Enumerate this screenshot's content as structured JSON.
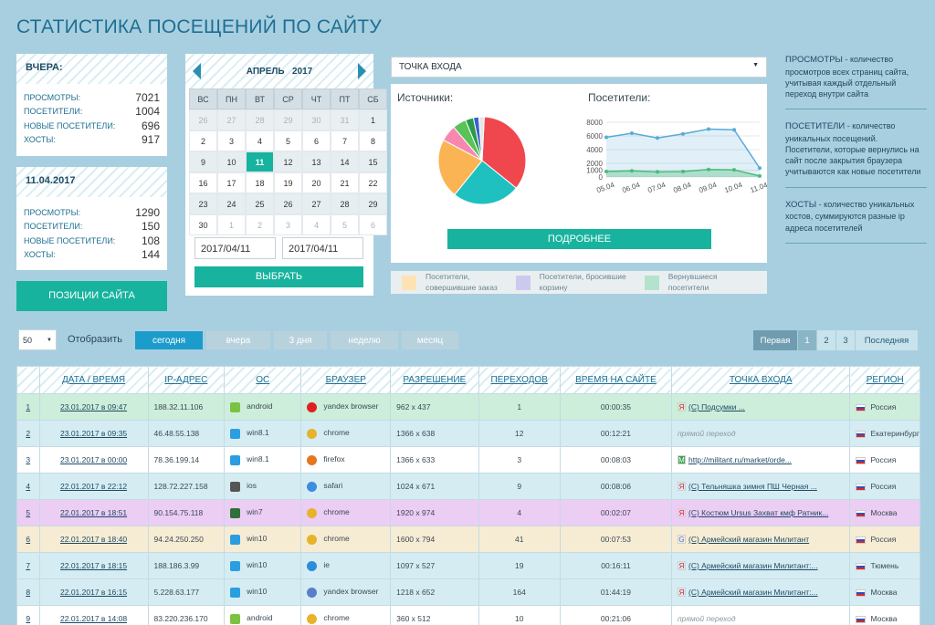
{
  "page_title": "СТАТИСТИКА ПОСЕЩЕНИЙ ПО САЙТУ",
  "yesterday": {
    "title": "ВЧЕРА:",
    "rows": [
      {
        "label": "ПРОСМОТРЫ:",
        "value": "7021"
      },
      {
        "label": "ПОСЕТИТЕЛИ:",
        "value": "1004"
      },
      {
        "label": "НОВЫЕ ПОСЕТИТЕЛИ:",
        "value": "696"
      },
      {
        "label": "ХОСТЫ:",
        "value": "917"
      }
    ]
  },
  "date_block": {
    "title": "11.04.2017",
    "rows": [
      {
        "label": "ПРОСМОТРЫ:",
        "value": "1290"
      },
      {
        "label": "ПОСЕТИТЕЛИ:",
        "value": "150"
      },
      {
        "label": "НОВЫЕ ПОСЕТИТЕЛИ:",
        "value": "108"
      },
      {
        "label": "ХОСТЫ:",
        "value": "144"
      }
    ]
  },
  "positions_button": "ПОЗИЦИИ САЙТА",
  "calendar": {
    "month": "АПРЕЛЬ",
    "year": "2017",
    "weekdays": [
      "ВС",
      "ПН",
      "ВТ",
      "СР",
      "ЧТ",
      "ПТ",
      "СБ"
    ],
    "days": [
      {
        "d": "26",
        "t": "dim"
      },
      {
        "d": "27",
        "t": "dim"
      },
      {
        "d": "28",
        "t": "dim"
      },
      {
        "d": "29",
        "t": "dim"
      },
      {
        "d": "30",
        "t": "dim"
      },
      {
        "d": "31",
        "t": "dim"
      },
      {
        "d": "1",
        "t": "alt"
      },
      {
        "d": "2",
        "t": "wh"
      },
      {
        "d": "3",
        "t": "wh"
      },
      {
        "d": "4",
        "t": "wh"
      },
      {
        "d": "5",
        "t": "wh"
      },
      {
        "d": "6",
        "t": "wh"
      },
      {
        "d": "7",
        "t": "wh"
      },
      {
        "d": "8",
        "t": "wh"
      },
      {
        "d": "9",
        "t": "alt"
      },
      {
        "d": "10",
        "t": "alt"
      },
      {
        "d": "11",
        "t": "sel"
      },
      {
        "d": "12",
        "t": "alt"
      },
      {
        "d": "13",
        "t": "alt"
      },
      {
        "d": "14",
        "t": "alt"
      },
      {
        "d": "15",
        "t": "alt"
      },
      {
        "d": "16",
        "t": "wh"
      },
      {
        "d": "17",
        "t": "wh"
      },
      {
        "d": "18",
        "t": "wh"
      },
      {
        "d": "19",
        "t": "wh"
      },
      {
        "d": "20",
        "t": "wh"
      },
      {
        "d": "21",
        "t": "wh"
      },
      {
        "d": "22",
        "t": "wh"
      },
      {
        "d": "23",
        "t": "alt"
      },
      {
        "d": "24",
        "t": "alt"
      },
      {
        "d": "25",
        "t": "alt"
      },
      {
        "d": "26",
        "t": "alt"
      },
      {
        "d": "27",
        "t": "alt"
      },
      {
        "d": "28",
        "t": "alt"
      },
      {
        "d": "29",
        "t": "alt"
      },
      {
        "d": "30",
        "t": "wh"
      },
      {
        "d": "1",
        "t": "dimw"
      },
      {
        "d": "2",
        "t": "dimw"
      },
      {
        "d": "3",
        "t": "dimw"
      },
      {
        "d": "4",
        "t": "dimw"
      },
      {
        "d": "5",
        "t": "dimw"
      },
      {
        "d": "6",
        "t": "dimw"
      }
    ],
    "date_from": "2017/04/11",
    "date_to": "2017/04/11",
    "choose_button": "ВЫБРАТЬ"
  },
  "entry_select": "ТОЧКА ВХОДА",
  "sources_label": "Источники:",
  "visitors_label": "Посетители:",
  "more_button": "ПОДРОБНЕЕ",
  "legend": [
    {
      "label": "Посетители,\nсовершившие заказ",
      "color": "#fde3b4"
    },
    {
      "label": "Посетители, бросившие\nкорзину",
      "color": "#cdc9ee"
    },
    {
      "label": "Вернувшиеся\nпосетители",
      "color": "#b4e3cd"
    }
  ],
  "chart_data": [
    {
      "type": "pie",
      "title": "Источники:",
      "values": [
        35,
        25,
        22,
        6,
        5,
        3,
        2,
        2
      ],
      "colors": [
        "#f0474f",
        "#1fc0c0",
        "#fbb454",
        "#f887b0",
        "#59c258",
        "#2a9a4a",
        "#3c5fd0",
        "#e7e7e7"
      ]
    },
    {
      "type": "line",
      "title": "Посетители:",
      "x": [
        "05.04",
        "06.04",
        "07.04",
        "08.04",
        "09.04",
        "10.04",
        "11.04"
      ],
      "ylim": [
        0,
        8000
      ],
      "yticks": [
        "8000",
        "6000",
        "4000",
        "2000",
        "1000",
        "0"
      ],
      "ytick_values": [
        8000,
        6000,
        4000,
        2000,
        1000,
        0
      ],
      "series": [
        {
          "values": [
            5800,
            6400,
            5700,
            6300,
            7000,
            6900,
            1300
          ],
          "color": "#5aaad6"
        },
        {
          "values": [
            800,
            900,
            750,
            800,
            1100,
            1050,
            150
          ],
          "color": "#4cbc78"
        }
      ]
    }
  ],
  "descriptions": [
    {
      "term": "ПРОСМОТРЫ",
      "text": " - количество просмотров всех страниц сайта, учитывая каждый отдельный переход внутри сайта"
    },
    {
      "term": "ПОСЕТИТЕЛИ",
      "text": " - количество уникальных посещений. Посетители, которые вернулись на сайт после закрытия браузера учитываются как новые посетители"
    },
    {
      "term": "ХОСТЫ",
      "text": " - количество уникальных хостов, суммируются разные ip адреса посетителей"
    }
  ],
  "per_page": "50",
  "show_label": "Отобразить",
  "filters": [
    "сегодня",
    "вчера",
    "3 дня",
    "неделю",
    "месяц"
  ],
  "pager": [
    "Первая",
    "1",
    "2",
    "3",
    "Последняя"
  ],
  "table": {
    "headers": [
      "",
      "ДАТА / ВРЕМЯ",
      "IP-АДРЕС",
      "ОС",
      "БРАУЗЕР",
      "РАЗРЕШЕНИЕ",
      "ПЕРЕХОДОВ",
      "ВРЕМЯ НА САЙТЕ",
      "ТОЧКА ВХОДА",
      "РЕГИОН"
    ],
    "rows": [
      {
        "n": "1",
        "date": "23.01.2017 в 09:47",
        "ip": "188.32.11.106",
        "os": "android",
        "os_color": "#7cc242",
        "br": "yandex browser",
        "br_color": "#e02020",
        "res": "962 x 437",
        "hits": "1",
        "time": "00:00:35",
        "entry": "(С) Подсумки ...",
        "entry_icon": "Я",
        "region": "Россия",
        "bg": "#cdeeda"
      },
      {
        "n": "2",
        "date": "23.01.2017 в 09:35",
        "ip": "46.48.55.138",
        "os": "win8.1",
        "os_color": "#2a9ee0",
        "br": "chrome",
        "br_color": "#e8b32a",
        "res": "1366 x 638",
        "hits": "12",
        "time": "00:12:21",
        "entry": "прямой переход",
        "entry_icon": "",
        "region": "Екатеринбург",
        "bg": "#d6ecf3"
      },
      {
        "n": "3",
        "date": "23.01.2017 в 00:00",
        "ip": "78.36.199.14",
        "os": "win8.1",
        "os_color": "#2a9ee0",
        "br": "firefox",
        "br_color": "#e8761e",
        "res": "1366 x 633",
        "hits": "3",
        "time": "00:08:03",
        "entry": "http://militant.ru/market/orde...",
        "entry_icon": "M",
        "region": "Россия",
        "bg": "#ffffff"
      },
      {
        "n": "4",
        "date": "22.01.2017 в 22:12",
        "ip": "128.72.227.158",
        "os": "ios",
        "os_color": "#555555",
        "br": "safari",
        "br_color": "#3a8de0",
        "res": "1024 x 671",
        "hits": "9",
        "time": "00:08:06",
        "entry": "(С) Тельняшка зимня ПШ Черная ...",
        "entry_icon": "Я",
        "region": "Россия",
        "bg": "#d6ecf3"
      },
      {
        "n": "5",
        "date": "22.01.2017 в 18:51",
        "ip": "90.154.75.118",
        "os": "win7",
        "os_color": "#2f6f3a",
        "br": "chrome",
        "br_color": "#e8b32a",
        "res": "1920 x 974",
        "hits": "4",
        "time": "00:02:07",
        "entry": "(С) Костюм Ursus Захват кмф Ратник...",
        "entry_icon": "Я",
        "region": "Москва",
        "bg": "#eccdf3"
      },
      {
        "n": "6",
        "date": "22.01.2017 в 18:40",
        "ip": "94.24.250.250",
        "os": "win10",
        "os_color": "#2a9ee0",
        "br": "chrome",
        "br_color": "#e8b32a",
        "res": "1600 x 794",
        "hits": "41",
        "time": "00:07:53",
        "entry": "(С) Армейский магазин Милитант",
        "entry_icon": "G",
        "region": "Россия",
        "bg": "#f6ecd4"
      },
      {
        "n": "7",
        "date": "22.01.2017 в 18:15",
        "ip": "188.186.3.99",
        "os": "win10",
        "os_color": "#2a9ee0",
        "br": "ie",
        "br_color": "#2a8ed8",
        "res": "1097 x 527",
        "hits": "19",
        "time": "00:16:11",
        "entry": "(С) Армейский магазин Милитант:...",
        "entry_icon": "Я",
        "region": "Тюмень",
        "bg": "#d6ecf3"
      },
      {
        "n": "8",
        "date": "22.01.2017 в 16:15",
        "ip": "5.228.63.177",
        "os": "win10",
        "os_color": "#2a9ee0",
        "br": "yandex browser",
        "br_color": "#5a7ec8",
        "res": "1218 x 652",
        "hits": "164",
        "time": "01:44:19",
        "entry": "(С) Армейский магазин Милитант:...",
        "entry_icon": "Я",
        "region": "Москва",
        "bg": "#d6ecf3"
      },
      {
        "n": "9",
        "date": "22.01.2017 в 14:08",
        "ip": "83.220.236.170",
        "os": "android",
        "os_color": "#7cc242",
        "br": "chrome",
        "br_color": "#e8b32a",
        "res": "360 x 512",
        "hits": "10",
        "time": "00:21:06",
        "entry": "прямой переход",
        "entry_icon": "",
        "region": "Москва",
        "bg": "#ffffff"
      }
    ]
  }
}
